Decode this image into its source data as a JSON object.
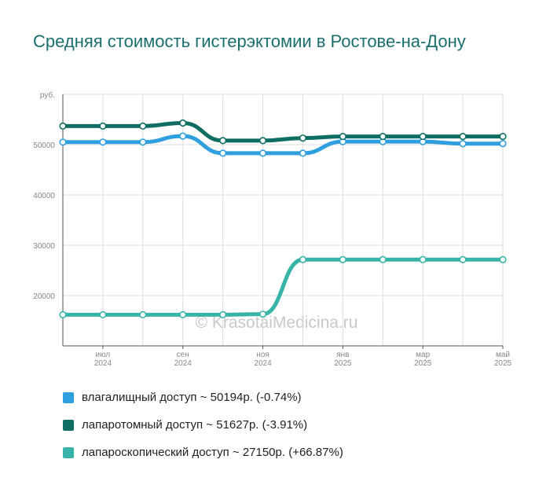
{
  "title": "Средняя стоимость гистерэктомии в Ростове-на-Дону",
  "watermark": "© KrasotaiMedicina.ru",
  "chart_data": {
    "type": "line",
    "y_unit": "руб.",
    "ylim": [
      10000,
      60000
    ],
    "yticks": [
      20000,
      30000,
      40000,
      50000
    ],
    "grid": true,
    "x": [
      "2024-06",
      "2024-07",
      "2024-08",
      "2024-09",
      "2024-10",
      "2024-11",
      "2024-12",
      "2025-01",
      "2025-02",
      "2025-03",
      "2025-04",
      "2025-05"
    ],
    "xtick_labels": [
      {
        "month": "июл",
        "year": "2024"
      },
      {
        "month": "сен",
        "year": "2024"
      },
      {
        "month": "ноя",
        "year": "2024"
      },
      {
        "month": "янв",
        "year": "2025"
      },
      {
        "month": "мар",
        "year": "2025"
      },
      {
        "month": "май",
        "year": "2025"
      }
    ],
    "legend_position": "bottom",
    "series": [
      {
        "name": "влагалищный доступ ~ 50194р. (-0.74%)",
        "color": "#2f9fe0",
        "values": [
          50500,
          50500,
          50500,
          51700,
          48300,
          48300,
          48300,
          50600,
          50600,
          50600,
          50200,
          50194
        ]
      },
      {
        "name": "лапаротомный доступ ~ 51627р. (-3.91%)",
        "color": "#0f6e63",
        "values": [
          53700,
          53700,
          53700,
          54300,
          50800,
          50800,
          51300,
          51627,
          51627,
          51627,
          51627,
          51627
        ]
      },
      {
        "name": "лапароскопический доступ ~ 27150р. (+66.87%)",
        "color": "#38b3a8",
        "values": [
          16200,
          16200,
          16200,
          16200,
          16200,
          16300,
          27150,
          27150,
          27150,
          27150,
          27150,
          27150
        ]
      }
    ]
  }
}
